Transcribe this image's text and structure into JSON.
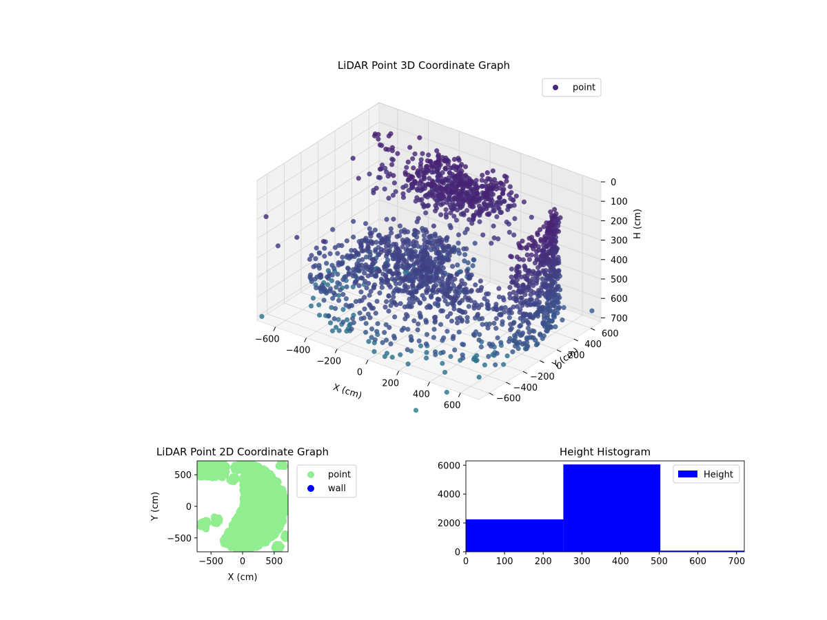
{
  "figure": {
    "background": "#ffffff"
  },
  "chart_data": [
    {
      "id": "chart3d",
      "type": "scatter",
      "projection": "3d",
      "title": "LiDAR Point 3D Coordinate Graph",
      "xlabel": "X (cm)",
      "ylabel": "Y (cm)",
      "zlabel": "H (cm)",
      "xlim": [
        -720,
        720
      ],
      "ylim": [
        -720,
        720
      ],
      "zlim": [
        0,
        720
      ],
      "z_inverted": true,
      "xticks": [
        -600,
        -400,
        -200,
        0,
        200,
        400,
        600
      ],
      "yticks": [
        -600,
        -400,
        -200,
        0,
        200,
        400,
        600
      ],
      "zticks": [
        0,
        100,
        200,
        300,
        400,
        500,
        600,
        700
      ],
      "grid": true,
      "legend": {
        "placement": "upper right",
        "entries": [
          {
            "label": "point",
            "color": "#482878"
          }
        ]
      },
      "colormap": "viridis",
      "shapes": {
        "low_ring": {
          "description": "ring of points, r about 450-700 cm, H about 400-700 cm",
          "angle_range_deg": [
            95,
            360
          ]
        },
        "upper_cluster": {
          "description": "dense patch near H 100-250 cm",
          "x_range": [
            -300,
            200
          ],
          "y_range": [
            200,
            650
          ],
          "h_range": [
            100,
            250
          ]
        },
        "curved_wall": {
          "description": "vertical curved band on the right side",
          "x_range": [
            350,
            700
          ],
          "y_range": [
            -200,
            500
          ],
          "h_range": [
            100,
            650
          ]
        }
      },
      "outliers_approx": [
        {
          "x": -700,
          "y": -650,
          "h": 200
        },
        {
          "x": -650,
          "y": -600,
          "h": 350
        },
        {
          "x": -700,
          "y": -700,
          "h": 700
        },
        {
          "x": 300,
          "y": -700,
          "h": 900
        },
        {
          "x": 500,
          "y": -700,
          "h": 750
        },
        {
          "x": 700,
          "y": 650,
          "h": 650
        },
        {
          "x": 650,
          "y": -400,
          "h": 650
        },
        {
          "x": 600,
          "y": -500,
          "h": 700
        },
        {
          "x": -500,
          "y": -650,
          "h": 250
        },
        {
          "x": -300,
          "y": -700,
          "h": 200
        },
        {
          "x": 600,
          "y": 500,
          "h": 620
        },
        {
          "x": 700,
          "y": 300,
          "h": 600
        }
      ]
    },
    {
      "id": "chart2d",
      "type": "scatter",
      "title": "LiDAR Point 2D Coordinate Graph",
      "xlabel": "X (cm)",
      "ylabel": "Y (cm)",
      "xlim": [
        -720,
        720
      ],
      "ylim": [
        -720,
        720
      ],
      "xticks": [
        -500,
        0,
        500
      ],
      "yticks": [
        -500,
        0,
        500
      ],
      "legend": {
        "placement": "outside right",
        "entries": [
          {
            "label": "point",
            "color": "#90ee90"
          },
          {
            "label": "wall",
            "color": "#0000ff"
          }
        ]
      },
      "series": [
        {
          "name": "point",
          "color": "#90ee90",
          "main_region": "points within r <= 690 cm for x >= -420, polar angle -120 to 90 degrees, plus spur to upper-left",
          "blobs": [
            {
              "x": -600,
              "y": -290,
              "r": 80
            },
            {
              "x": -420,
              "y": -220,
              "r": 60
            },
            {
              "x": -150,
              "y": 420,
              "r": 60
            },
            {
              "x": -90,
              "y": 630,
              "r": 70
            },
            {
              "x": 620,
              "y": 650,
              "r": 50
            },
            {
              "x": 690,
              "y": -480,
              "r": 55
            },
            {
              "x": 560,
              "y": -650,
              "r": 55
            }
          ]
        },
        {
          "name": "wall",
          "color": "#0000ff",
          "points": []
        }
      ]
    },
    {
      "id": "hist",
      "type": "bar",
      "title": "Height Histogram",
      "xlim": [
        0,
        720
      ],
      "ylim": [
        0,
        6300
      ],
      "xticks": [
        0,
        100,
        200,
        300,
        400,
        500,
        600,
        700
      ],
      "yticks": [
        0,
        2000,
        4000,
        6000
      ],
      "legend": {
        "placement": "upper right",
        "entries": [
          {
            "label": "Height",
            "color": "#0000ff"
          }
        ]
      },
      "bins": [
        {
          "start": 0,
          "end": 252,
          "count": 2250
        },
        {
          "start": 252,
          "end": 503,
          "count": 6050
        },
        {
          "start": 503,
          "end": 755,
          "count": 80
        }
      ],
      "color": "#0000ff"
    }
  ]
}
